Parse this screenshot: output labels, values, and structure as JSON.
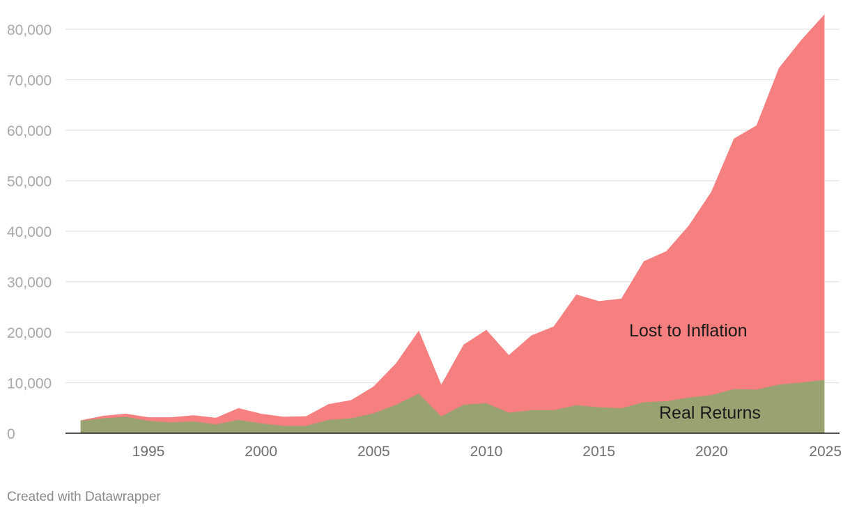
{
  "chart_data": {
    "type": "area",
    "stacked": true,
    "title": "",
    "xlabel": "",
    "ylabel": "",
    "xlim": [
      1992,
      2025
    ],
    "ylim": [
      0,
      82000
    ],
    "y_ticks": [
      0,
      10000,
      20000,
      30000,
      40000,
      50000,
      60000,
      70000,
      80000
    ],
    "y_tick_labels": [
      "0",
      "10,000",
      "20,000",
      "30,000",
      "40,000",
      "50,000",
      "60,000",
      "70,000",
      "80,000"
    ],
    "x_ticks": [
      1995,
      2000,
      2005,
      2010,
      2015,
      2020,
      2025
    ],
    "x_tick_labels": [
      "1995",
      "2000",
      "2005",
      "2010",
      "2015",
      "2020",
      "2025"
    ],
    "grid": true,
    "x": [
      1992,
      1993,
      1994,
      1995,
      1996,
      1997,
      1998,
      1999,
      2000,
      2001,
      2002,
      2003,
      2004,
      2005,
      2006,
      2007,
      2008,
      2009,
      2010,
      2011,
      2012,
      2013,
      2014,
      2015,
      2016,
      2017,
      2018,
      2019,
      2020,
      2021,
      2022,
      2023,
      2024,
      2025
    ],
    "series": [
      {
        "name": "Real Returns",
        "color": "#98a371",
        "values": [
          2500,
          3000,
          3300,
          2500,
          2200,
          2400,
          1800,
          2700,
          2000,
          1500,
          1500,
          2700,
          3000,
          4000,
          5700,
          7900,
          3400,
          5700,
          6000,
          4100,
          4600,
          4600,
          5600,
          5200,
          5000,
          6200,
          6400,
          7100,
          7600,
          8800,
          8700,
          9700,
          10100,
          10600
        ]
      },
      {
        "name": "Lost to Inflation",
        "color": "#f67f80",
        "values": [
          0,
          400,
          500,
          600,
          900,
          1100,
          1200,
          2200,
          1800,
          1700,
          1800,
          3000,
          3500,
          5200,
          8100,
          12300,
          6100,
          11800,
          14400,
          11300,
          14700,
          16500,
          21800,
          20900,
          21600,
          27800,
          29600,
          34000,
          40200,
          49500,
          52200,
          62600,
          67800,
          72200
        ]
      }
    ]
  },
  "footer": {
    "credit": "Created with Datawrapper"
  }
}
